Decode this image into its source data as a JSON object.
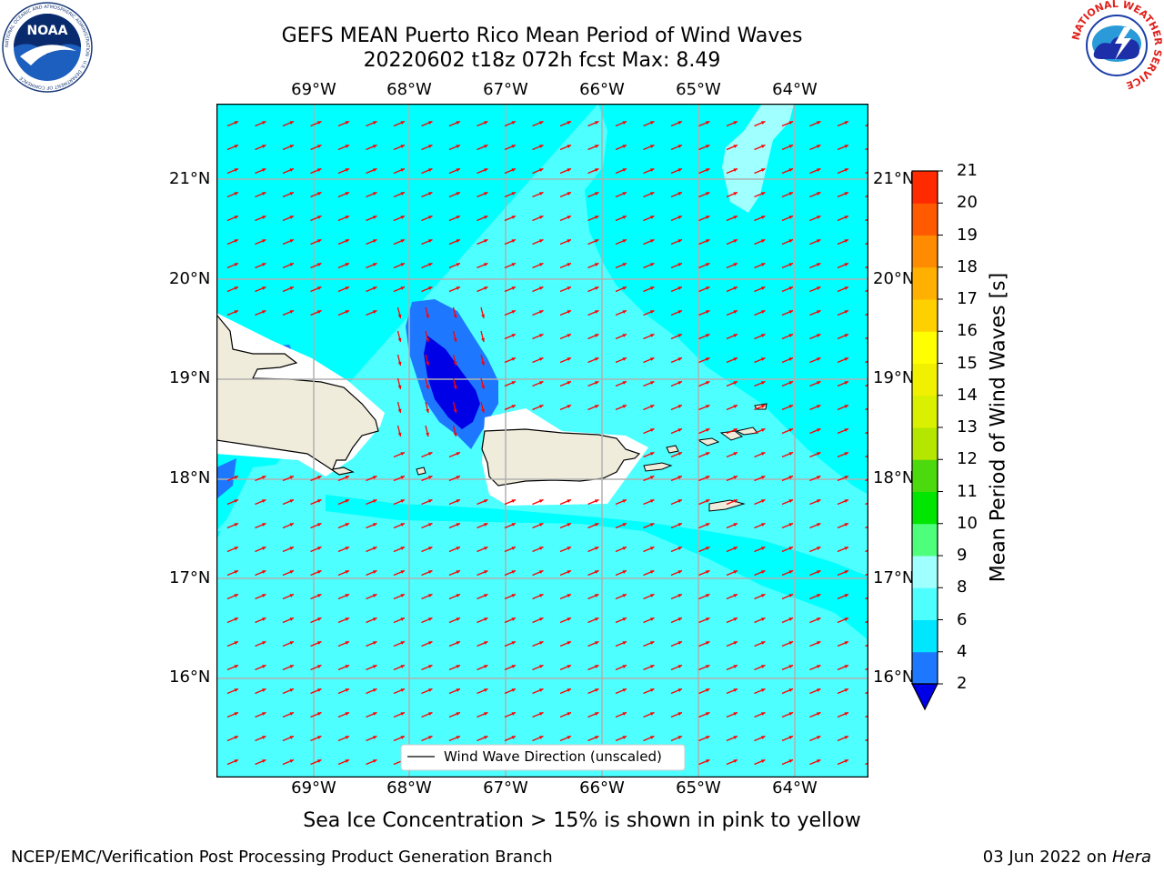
{
  "title": {
    "line1": "GEFS MEAN Puerto Rico Mean Period of Wind Waves",
    "line2": "20220602 t18z 072h fcst   Max: 8.49"
  },
  "logos": {
    "left": "NOAA",
    "left_ring": "NATIONAL OCEANIC AND ATMOSPHERIC ADMINISTRATION · U.S. DEPARTMENT OF COMMERCE",
    "right_ring": "NATIONAL WEATHER SERVICE"
  },
  "map": {
    "lon_labels": [
      "69°W",
      "68°W",
      "67°W",
      "66°W",
      "65°W",
      "64°W"
    ],
    "lat_labels": [
      "21°N",
      "20°N",
      "19°N",
      "18°N",
      "17°N",
      "16°N"
    ],
    "legend": "Wind Wave Direction (unscaled)",
    "colors": {
      "ocean_4_6": "#00ffff",
      "ocean_6_8": "#4dffff",
      "ocean_8_9": "#a0ffff",
      "ocean_2_4": "#1e78ff",
      "ocean_lt2": "#0000e6",
      "land": "#efecdb",
      "arrows": "#ff0000",
      "grid": "#b0b0b0"
    }
  },
  "colorbar": {
    "label": "Mean Period of Wind Waves [s]",
    "ticks": [
      "2",
      "4",
      "6",
      "8",
      "9",
      "10",
      "11",
      "12",
      "13",
      "14",
      "15",
      "16",
      "17",
      "18",
      "19",
      "20",
      "21"
    ],
    "colors": [
      "#1e78ff",
      "#00e6ff",
      "#4dffff",
      "#a0ffff",
      "#4dff7a",
      "#00e600",
      "#4cd90e",
      "#b5e600",
      "#d9f000",
      "#f0f000",
      "#ffff00",
      "#ffd000",
      "#ffb000",
      "#ff8c00",
      "#ff5a00",
      "#ff2a00"
    ],
    "extend_low_color": "#0000e6"
  },
  "caption": "Sea Ice Concentration > 15% is shown in pink to yellow",
  "footer": {
    "left": "NCEP/EMC/Verification Post Processing Product Generation Branch",
    "right_date": "03 Jun 2022 on ",
    "right_system": "Hera"
  }
}
